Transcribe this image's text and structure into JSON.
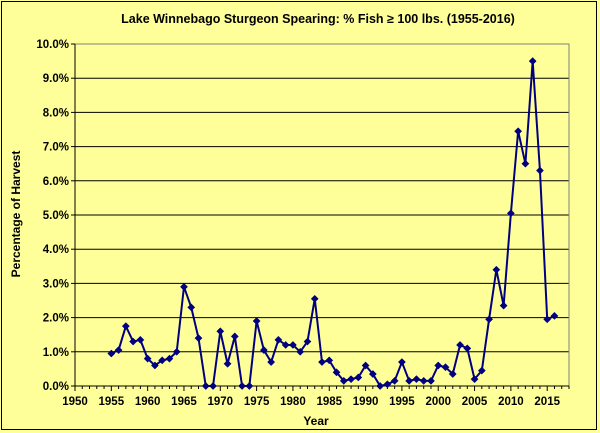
{
  "chart_data": {
    "type": "line",
    "title": "Lake Winnebago Sturgeon Spearing: % Fish ≥ 100 lbs. (1955-2016)",
    "xlabel": "Year",
    "ylabel": "Percentage of Harvest",
    "xlim": [
      1950,
      2018
    ],
    "ylim": [
      0,
      10
    ],
    "xticks": [
      "1950",
      "1955",
      "1960",
      "1965",
      "1970",
      "1975",
      "1980",
      "1985",
      "1990",
      "1995",
      "2000",
      "2005",
      "2010",
      "2015"
    ],
    "yticks": [
      "0.0%",
      "1.0%",
      "2.0%",
      "3.0%",
      "4.0%",
      "5.0%",
      "6.0%",
      "7.0%",
      "8.0%",
      "9.0%",
      "10.0%"
    ],
    "grid": "horizontal",
    "legend": "none",
    "line_color": "#000080",
    "x": [
      1955,
      1956,
      1957,
      1958,
      1959,
      1960,
      1961,
      1962,
      1963,
      1964,
      1965,
      1966,
      1967,
      1968,
      1969,
      1970,
      1971,
      1972,
      1973,
      1974,
      1975,
      1976,
      1977,
      1978,
      1979,
      1980,
      1981,
      1982,
      1983,
      1984,
      1985,
      1986,
      1987,
      1988,
      1989,
      1990,
      1991,
      1992,
      1993,
      1994,
      1995,
      1996,
      1997,
      1998,
      1999,
      2000,
      2001,
      2002,
      2003,
      2004,
      2005,
      2006,
      2007,
      2008,
      2009,
      2010,
      2011,
      2012,
      2013,
      2014,
      2015,
      2016
    ],
    "values": [
      0.95,
      1.05,
      1.75,
      1.3,
      1.35,
      0.8,
      0.6,
      0.75,
      0.8,
      1.0,
      2.9,
      2.3,
      1.4,
      0.0,
      0.0,
      1.6,
      0.65,
      1.45,
      0.0,
      0.0,
      1.9,
      1.05,
      0.7,
      1.35,
      1.2,
      1.2,
      1.0,
      1.3,
      2.55,
      0.7,
      0.75,
      0.4,
      0.15,
      0.2,
      0.25,
      0.6,
      0.35,
      0.0,
      0.05,
      0.15,
      0.7,
      0.15,
      0.2,
      0.15,
      0.15,
      0.6,
      0.55,
      0.35,
      1.2,
      1.1,
      0.2,
      0.45,
      1.95,
      3.4,
      2.35,
      5.05,
      7.45,
      6.5,
      9.5,
      6.3,
      1.95,
      2.05
    ]
  }
}
